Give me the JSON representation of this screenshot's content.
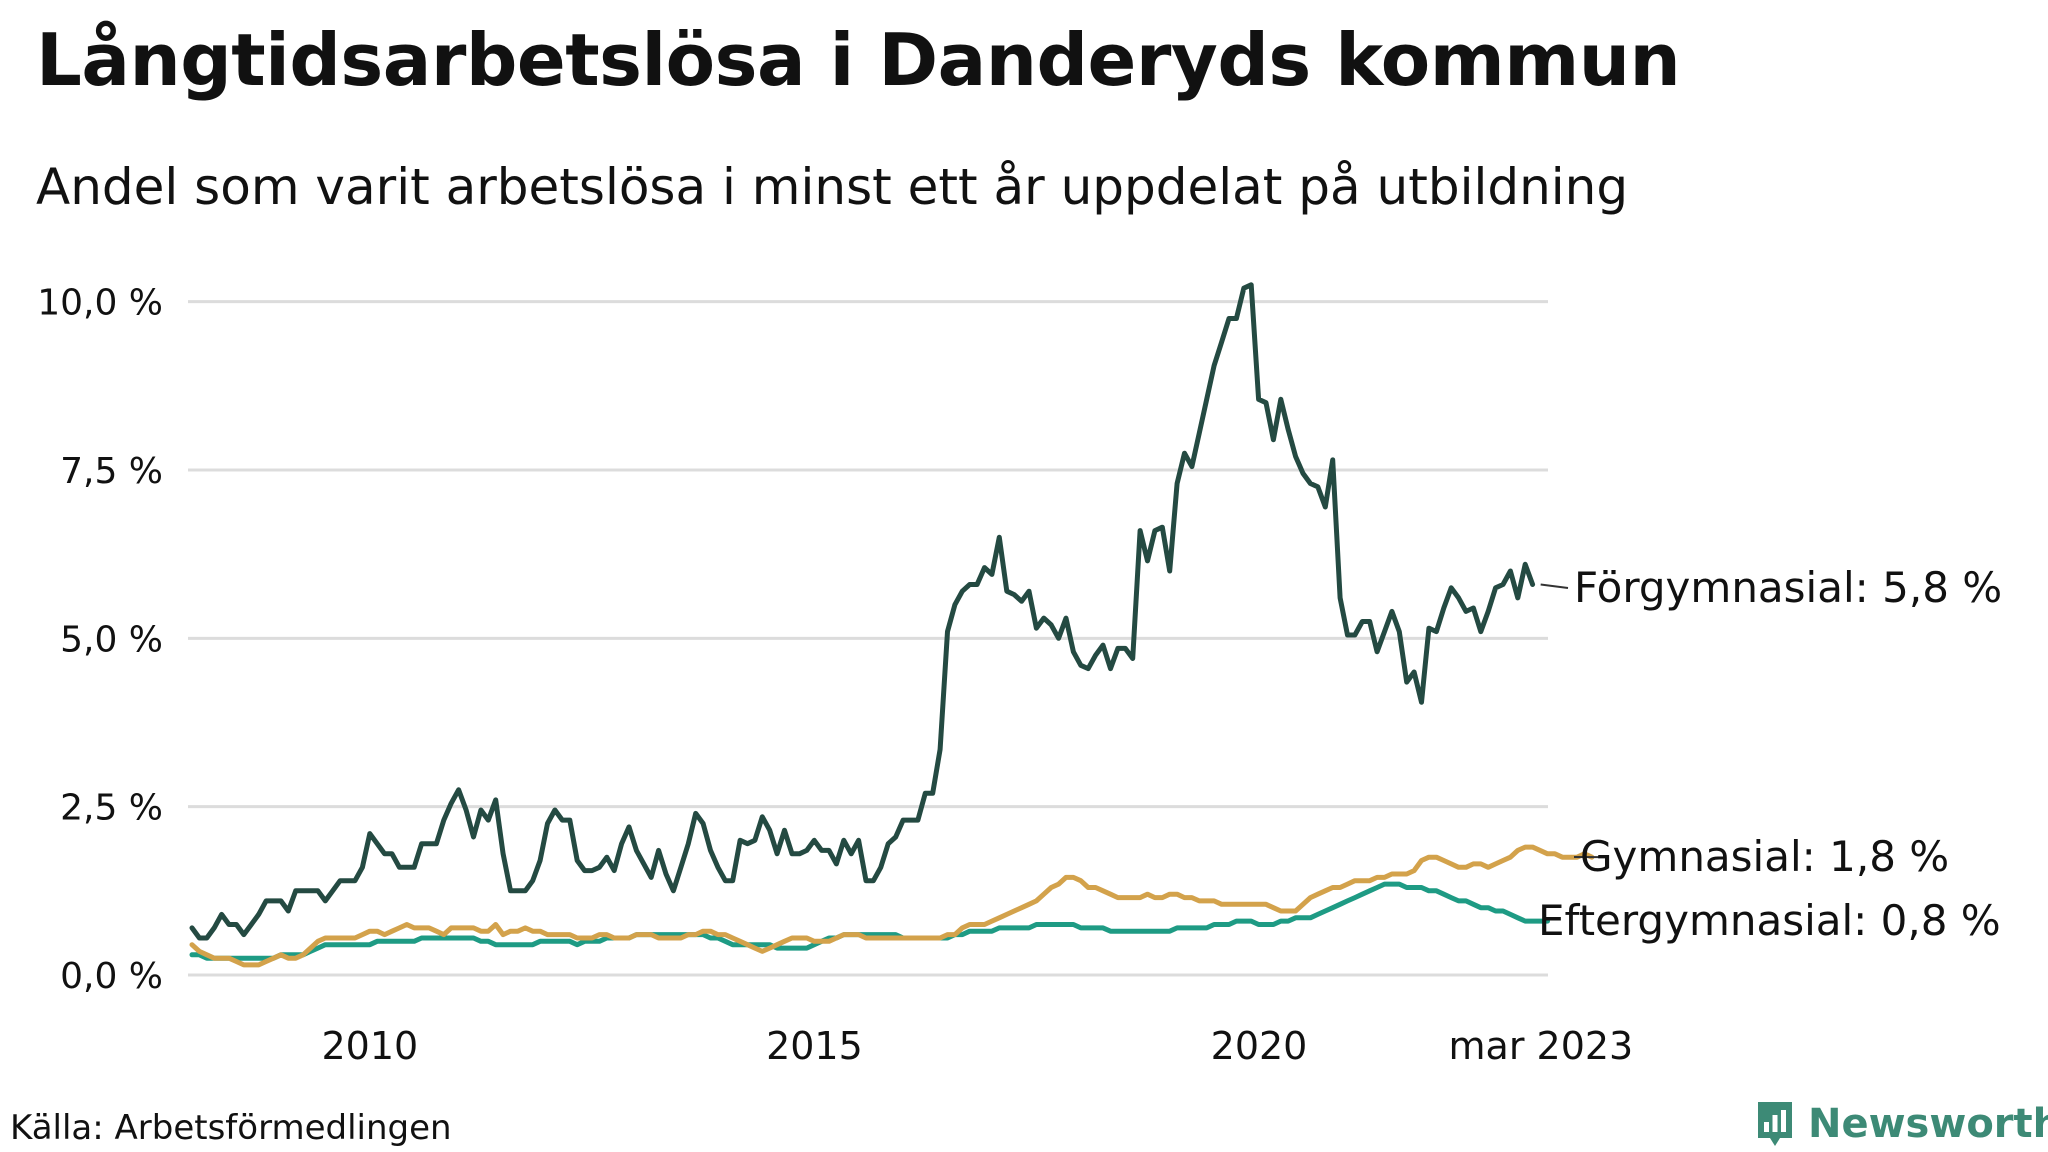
{
  "title": "Långtidsarbetslösa i Danderyds kommun",
  "subtitle": "Andel som varit arbetslösa i minst ett år uppdelat på utbildning",
  "source": "Källa: Arbetsförmedlingen",
  "brand": {
    "name": "Newsworthy",
    "icon": "newsworthy-logo-icon",
    "color": "#3d8a76"
  },
  "chart_data": {
    "type": "line",
    "x_start": 2008.0,
    "x_step": 0.0833,
    "xlim": [
      2008.0,
      2023.25
    ],
    "ylim": [
      0,
      10.5
    ],
    "y_ticks": [
      0,
      2.5,
      5.0,
      7.5,
      10.0
    ],
    "y_tick_labels": [
      "0,0 %",
      "2,5 %",
      "5,0 %",
      "7,5 %",
      "10,0 %"
    ],
    "x_ticks": [
      2010,
      2015,
      2020,
      2023.17
    ],
    "x_tick_labels": [
      "2010",
      "2015",
      "2020",
      "mar 2023"
    ],
    "grid": true,
    "legend": "end-of-line labels",
    "series": [
      {
        "name": "Förgymnasial",
        "end_label": "Förgymnasial: 5,8 %",
        "color": "#244a42",
        "values": [
          0.7,
          0.55,
          0.55,
          0.7,
          0.9,
          0.75,
          0.75,
          0.6,
          0.75,
          0.9,
          1.1,
          1.1,
          1.1,
          0.95,
          1.25,
          1.25,
          1.25,
          1.25,
          1.1,
          1.25,
          1.4,
          1.4,
          1.4,
          1.6,
          2.1,
          1.95,
          1.8,
          1.8,
          1.6,
          1.6,
          1.6,
          1.95,
          1.95,
          1.95,
          2.3,
          2.55,
          2.75,
          2.45,
          2.05,
          2.45,
          2.3,
          2.6,
          1.8,
          1.25,
          1.25,
          1.25,
          1.4,
          1.7,
          2.25,
          2.45,
          2.3,
          2.3,
          1.7,
          1.55,
          1.55,
          1.6,
          1.75,
          1.55,
          1.95,
          2.2,
          1.85,
          1.65,
          1.45,
          1.85,
          1.5,
          1.25,
          1.6,
          1.95,
          2.4,
          2.25,
          1.85,
          1.6,
          1.4,
          1.4,
          2.0,
          1.95,
          2.0,
          2.35,
          2.15,
          1.8,
          2.15,
          1.8,
          1.8,
          1.85,
          2.0,
          1.85,
          1.85,
          1.65,
          2.0,
          1.8,
          2.0,
          1.4,
          1.4,
          1.6,
          1.95,
          2.05,
          2.3,
          2.3,
          2.3,
          2.7,
          2.7,
          3.35,
          5.1,
          5.5,
          5.7,
          5.8,
          5.8,
          6.05,
          5.95,
          6.5,
          5.7,
          5.65,
          5.55,
          5.7,
          5.15,
          5.3,
          5.2,
          5.0,
          5.3,
          4.8,
          4.6,
          4.55,
          4.75,
          4.9,
          4.55,
          4.85,
          4.85,
          4.7,
          6.6,
          6.15,
          6.6,
          6.65,
          6.0,
          7.3,
          7.75,
          7.55,
          8.05,
          8.55,
          9.05,
          9.4,
          9.75,
          9.75,
          10.2,
          10.25,
          8.55,
          8.5,
          7.95,
          8.55,
          8.1,
          7.7,
          7.45,
          7.3,
          7.25,
          6.95,
          7.65,
          5.6,
          5.05,
          5.05,
          5.25,
          5.25,
          4.8,
          5.1,
          5.4,
          5.1,
          4.35,
          4.5,
          4.05,
          5.15,
          5.1,
          5.45,
          5.75,
          5.6,
          5.4,
          5.45,
          5.1,
          5.4,
          5.75,
          5.8,
          6.0,
          5.6,
          6.1,
          5.8
        ]
      },
      {
        "name": "Gymnasial",
        "end_label": "Gymnasial: 1,8 %",
        "color": "#d3a24b",
        "values": [
          0.45,
          0.35,
          0.3,
          0.25,
          0.25,
          0.25,
          0.2,
          0.15,
          0.15,
          0.15,
          0.2,
          0.25,
          0.3,
          0.25,
          0.25,
          0.3,
          0.4,
          0.5,
          0.55,
          0.55,
          0.55,
          0.55,
          0.55,
          0.6,
          0.65,
          0.65,
          0.6,
          0.65,
          0.7,
          0.75,
          0.7,
          0.7,
          0.7,
          0.65,
          0.6,
          0.7,
          0.7,
          0.7,
          0.7,
          0.65,
          0.65,
          0.75,
          0.6,
          0.65,
          0.65,
          0.7,
          0.65,
          0.65,
          0.6,
          0.6,
          0.6,
          0.6,
          0.55,
          0.55,
          0.55,
          0.6,
          0.6,
          0.55,
          0.55,
          0.55,
          0.6,
          0.6,
          0.6,
          0.55,
          0.55,
          0.55,
          0.55,
          0.6,
          0.6,
          0.65,
          0.65,
          0.6,
          0.6,
          0.55,
          0.5,
          0.45,
          0.4,
          0.35,
          0.4,
          0.45,
          0.5,
          0.55,
          0.55,
          0.55,
          0.5,
          0.5,
          0.5,
          0.55,
          0.6,
          0.6,
          0.6,
          0.55,
          0.55,
          0.55,
          0.55,
          0.55,
          0.55,
          0.55,
          0.55,
          0.55,
          0.55,
          0.55,
          0.6,
          0.6,
          0.7,
          0.75,
          0.75,
          0.75,
          0.8,
          0.85,
          0.9,
          0.95,
          1.0,
          1.05,
          1.1,
          1.2,
          1.3,
          1.35,
          1.45,
          1.45,
          1.4,
          1.3,
          1.3,
          1.25,
          1.2,
          1.15,
          1.15,
          1.15,
          1.15,
          1.2,
          1.15,
          1.15,
          1.2,
          1.2,
          1.15,
          1.15,
          1.1,
          1.1,
          1.1,
          1.05,
          1.05,
          1.05,
          1.05,
          1.05,
          1.05,
          1.05,
          1.0,
          0.95,
          0.95,
          0.95,
          1.05,
          1.15,
          1.2,
          1.25,
          1.3,
          1.3,
          1.35,
          1.4,
          1.4,
          1.4,
          1.45,
          1.45,
          1.5,
          1.5,
          1.5,
          1.55,
          1.7,
          1.75,
          1.75,
          1.7,
          1.65,
          1.6,
          1.6,
          1.65,
          1.65,
          1.6,
          1.65,
          1.7,
          1.75,
          1.85,
          1.9,
          1.9,
          1.85,
          1.8,
          1.8,
          1.75,
          1.75,
          1.75,
          1.8,
          1.75
        ]
      },
      {
        "name": "Eftergymnasial",
        "end_label": "Eftergymnasial: 0,8 %",
        "color": "#1e9b84",
        "values": [
          0.3,
          0.3,
          0.25,
          0.25,
          0.25,
          0.25,
          0.25,
          0.25,
          0.25,
          0.25,
          0.25,
          0.25,
          0.3,
          0.3,
          0.3,
          0.3,
          0.35,
          0.4,
          0.45,
          0.45,
          0.45,
          0.45,
          0.45,
          0.45,
          0.45,
          0.5,
          0.5,
          0.5,
          0.5,
          0.5,
          0.5,
          0.55,
          0.55,
          0.55,
          0.55,
          0.55,
          0.55,
          0.55,
          0.55,
          0.5,
          0.5,
          0.45,
          0.45,
          0.45,
          0.45,
          0.45,
          0.45,
          0.5,
          0.5,
          0.5,
          0.5,
          0.5,
          0.45,
          0.5,
          0.5,
          0.5,
          0.55,
          0.55,
          0.55,
          0.55,
          0.6,
          0.6,
          0.6,
          0.6,
          0.6,
          0.6,
          0.6,
          0.6,
          0.6,
          0.6,
          0.55,
          0.55,
          0.5,
          0.45,
          0.45,
          0.45,
          0.45,
          0.45,
          0.45,
          0.4,
          0.4,
          0.4,
          0.4,
          0.4,
          0.45,
          0.5,
          0.55,
          0.55,
          0.6,
          0.6,
          0.6,
          0.6,
          0.6,
          0.6,
          0.6,
          0.6,
          0.55,
          0.55,
          0.55,
          0.55,
          0.55,
          0.55,
          0.55,
          0.6,
          0.6,
          0.65,
          0.65,
          0.65,
          0.65,
          0.7,
          0.7,
          0.7,
          0.7,
          0.7,
          0.75,
          0.75,
          0.75,
          0.75,
          0.75,
          0.75,
          0.7,
          0.7,
          0.7,
          0.7,
          0.65,
          0.65,
          0.65,
          0.65,
          0.65,
          0.65,
          0.65,
          0.65,
          0.65,
          0.7,
          0.7,
          0.7,
          0.7,
          0.7,
          0.75,
          0.75,
          0.75,
          0.8,
          0.8,
          0.8,
          0.75,
          0.75,
          0.75,
          0.8,
          0.8,
          0.85,
          0.85,
          0.85,
          0.9,
          0.95,
          1.0,
          1.05,
          1.1,
          1.15,
          1.2,
          1.25,
          1.3,
          1.35,
          1.35,
          1.35,
          1.3,
          1.3,
          1.3,
          1.25,
          1.25,
          1.2,
          1.15,
          1.1,
          1.1,
          1.05,
          1.0,
          1.0,
          0.95,
          0.95,
          0.9,
          0.85,
          0.8,
          0.8,
          0.8,
          0.8
        ]
      }
    ]
  }
}
